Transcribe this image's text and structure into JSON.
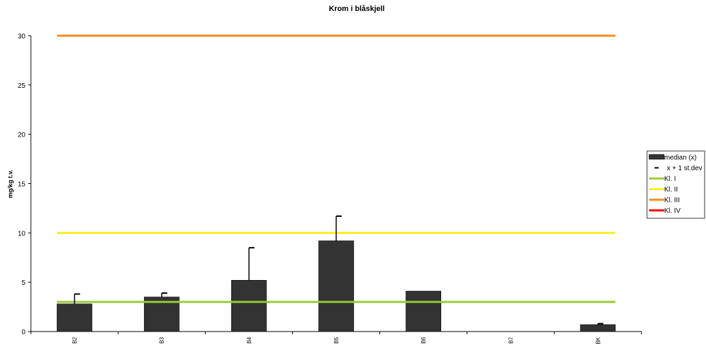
{
  "chart_data": {
    "type": "bar",
    "title": "Krom i blåskjell",
    "xlabel": "",
    "ylabel": "mg/kg t.v.",
    "ylim": [
      0,
      30
    ],
    "yticks": [
      0,
      5,
      10,
      15,
      20,
      25,
      30
    ],
    "categories": [
      "B2",
      "B3",
      "B4",
      "B5",
      "B6",
      "B7",
      "BK"
    ],
    "series": [
      {
        "name": "median (x)",
        "kind": "bar",
        "color": "#333333",
        "values": [
          2.8,
          3.5,
          5.2,
          9.2,
          4.1,
          null,
          0.7
        ]
      },
      {
        "name": "x + 1 st.dev",
        "kind": "errorbar",
        "color": "#000000",
        "values": [
          3.8,
          3.9,
          8.5,
          11.7,
          4.1,
          null,
          0.8
        ]
      }
    ],
    "reference_lines": [
      {
        "name": "Kl. I",
        "value": 3,
        "color": "#99cc33",
        "drawn": true
      },
      {
        "name": "Kl. II",
        "value": 10,
        "color": "#ffee22",
        "drawn": true
      },
      {
        "name": "Kl. III",
        "value": 30,
        "color": "#ff8c1a",
        "drawn": true
      },
      {
        "name": "Kl. IV",
        "value": null,
        "color": "#ff0000",
        "drawn": false
      }
    ],
    "grid": false,
    "legend_position": "right"
  }
}
